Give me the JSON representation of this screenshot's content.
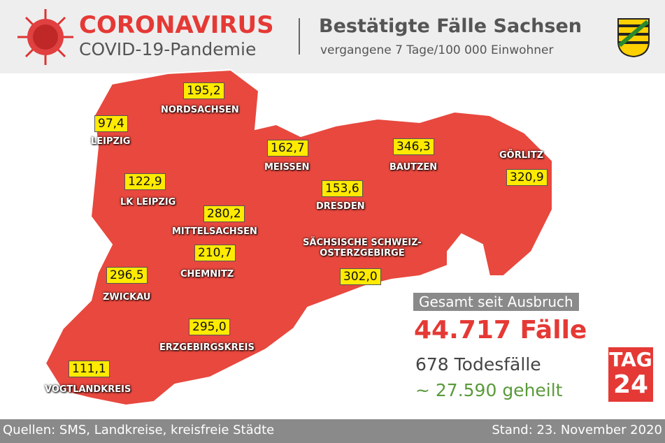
{
  "header": {
    "title": "CORONAVIRUS",
    "subtitle": "COVID-19-Pandemie",
    "heading": "Bestätigte Fälle Sachsen",
    "subheading": "vergangene 7 Tage/100 000 Einwohner"
  },
  "regions": [
    {
      "name": "NORDSACHSEN",
      "value": "195,2"
    },
    {
      "name": "LEIPZIG",
      "value": "97,4"
    },
    {
      "name": "MEISSEN",
      "value": "162,7"
    },
    {
      "name": "BAUTZEN",
      "value": "346,3"
    },
    {
      "name": "GÖRLITZ",
      "value": "320,9"
    },
    {
      "name": "LK LEIPZIG",
      "value": "122,9"
    },
    {
      "name": "DRESDEN",
      "value": "153,6"
    },
    {
      "name": "MITTELSACHSEN",
      "value": "280,2"
    },
    {
      "name": "SÄCHSISCHE SCHWEIZ-OSTERZGEBIRGE",
      "value": "302,0"
    },
    {
      "name": "CHEMNITZ",
      "value": "210,7"
    },
    {
      "name": "ZWICKAU",
      "value": "296,5"
    },
    {
      "name": "ERZGEBIRGSKREIS",
      "value": "295,0"
    },
    {
      "name": "VOGTLANDKREIS",
      "value": "111,1"
    }
  ],
  "summary": {
    "label": "Gesamt seit Ausbruch",
    "cases": "44.717 Fälle",
    "deaths": "678 Todesfälle",
    "recovered": "~ 27.590 geheilt"
  },
  "logo": {
    "top": "TAG",
    "bottom": "24"
  },
  "footer": {
    "sources": "Quellen: SMS, Landkreise, kreisfreie Städte",
    "date": "Stand: 23. November 2020"
  }
}
